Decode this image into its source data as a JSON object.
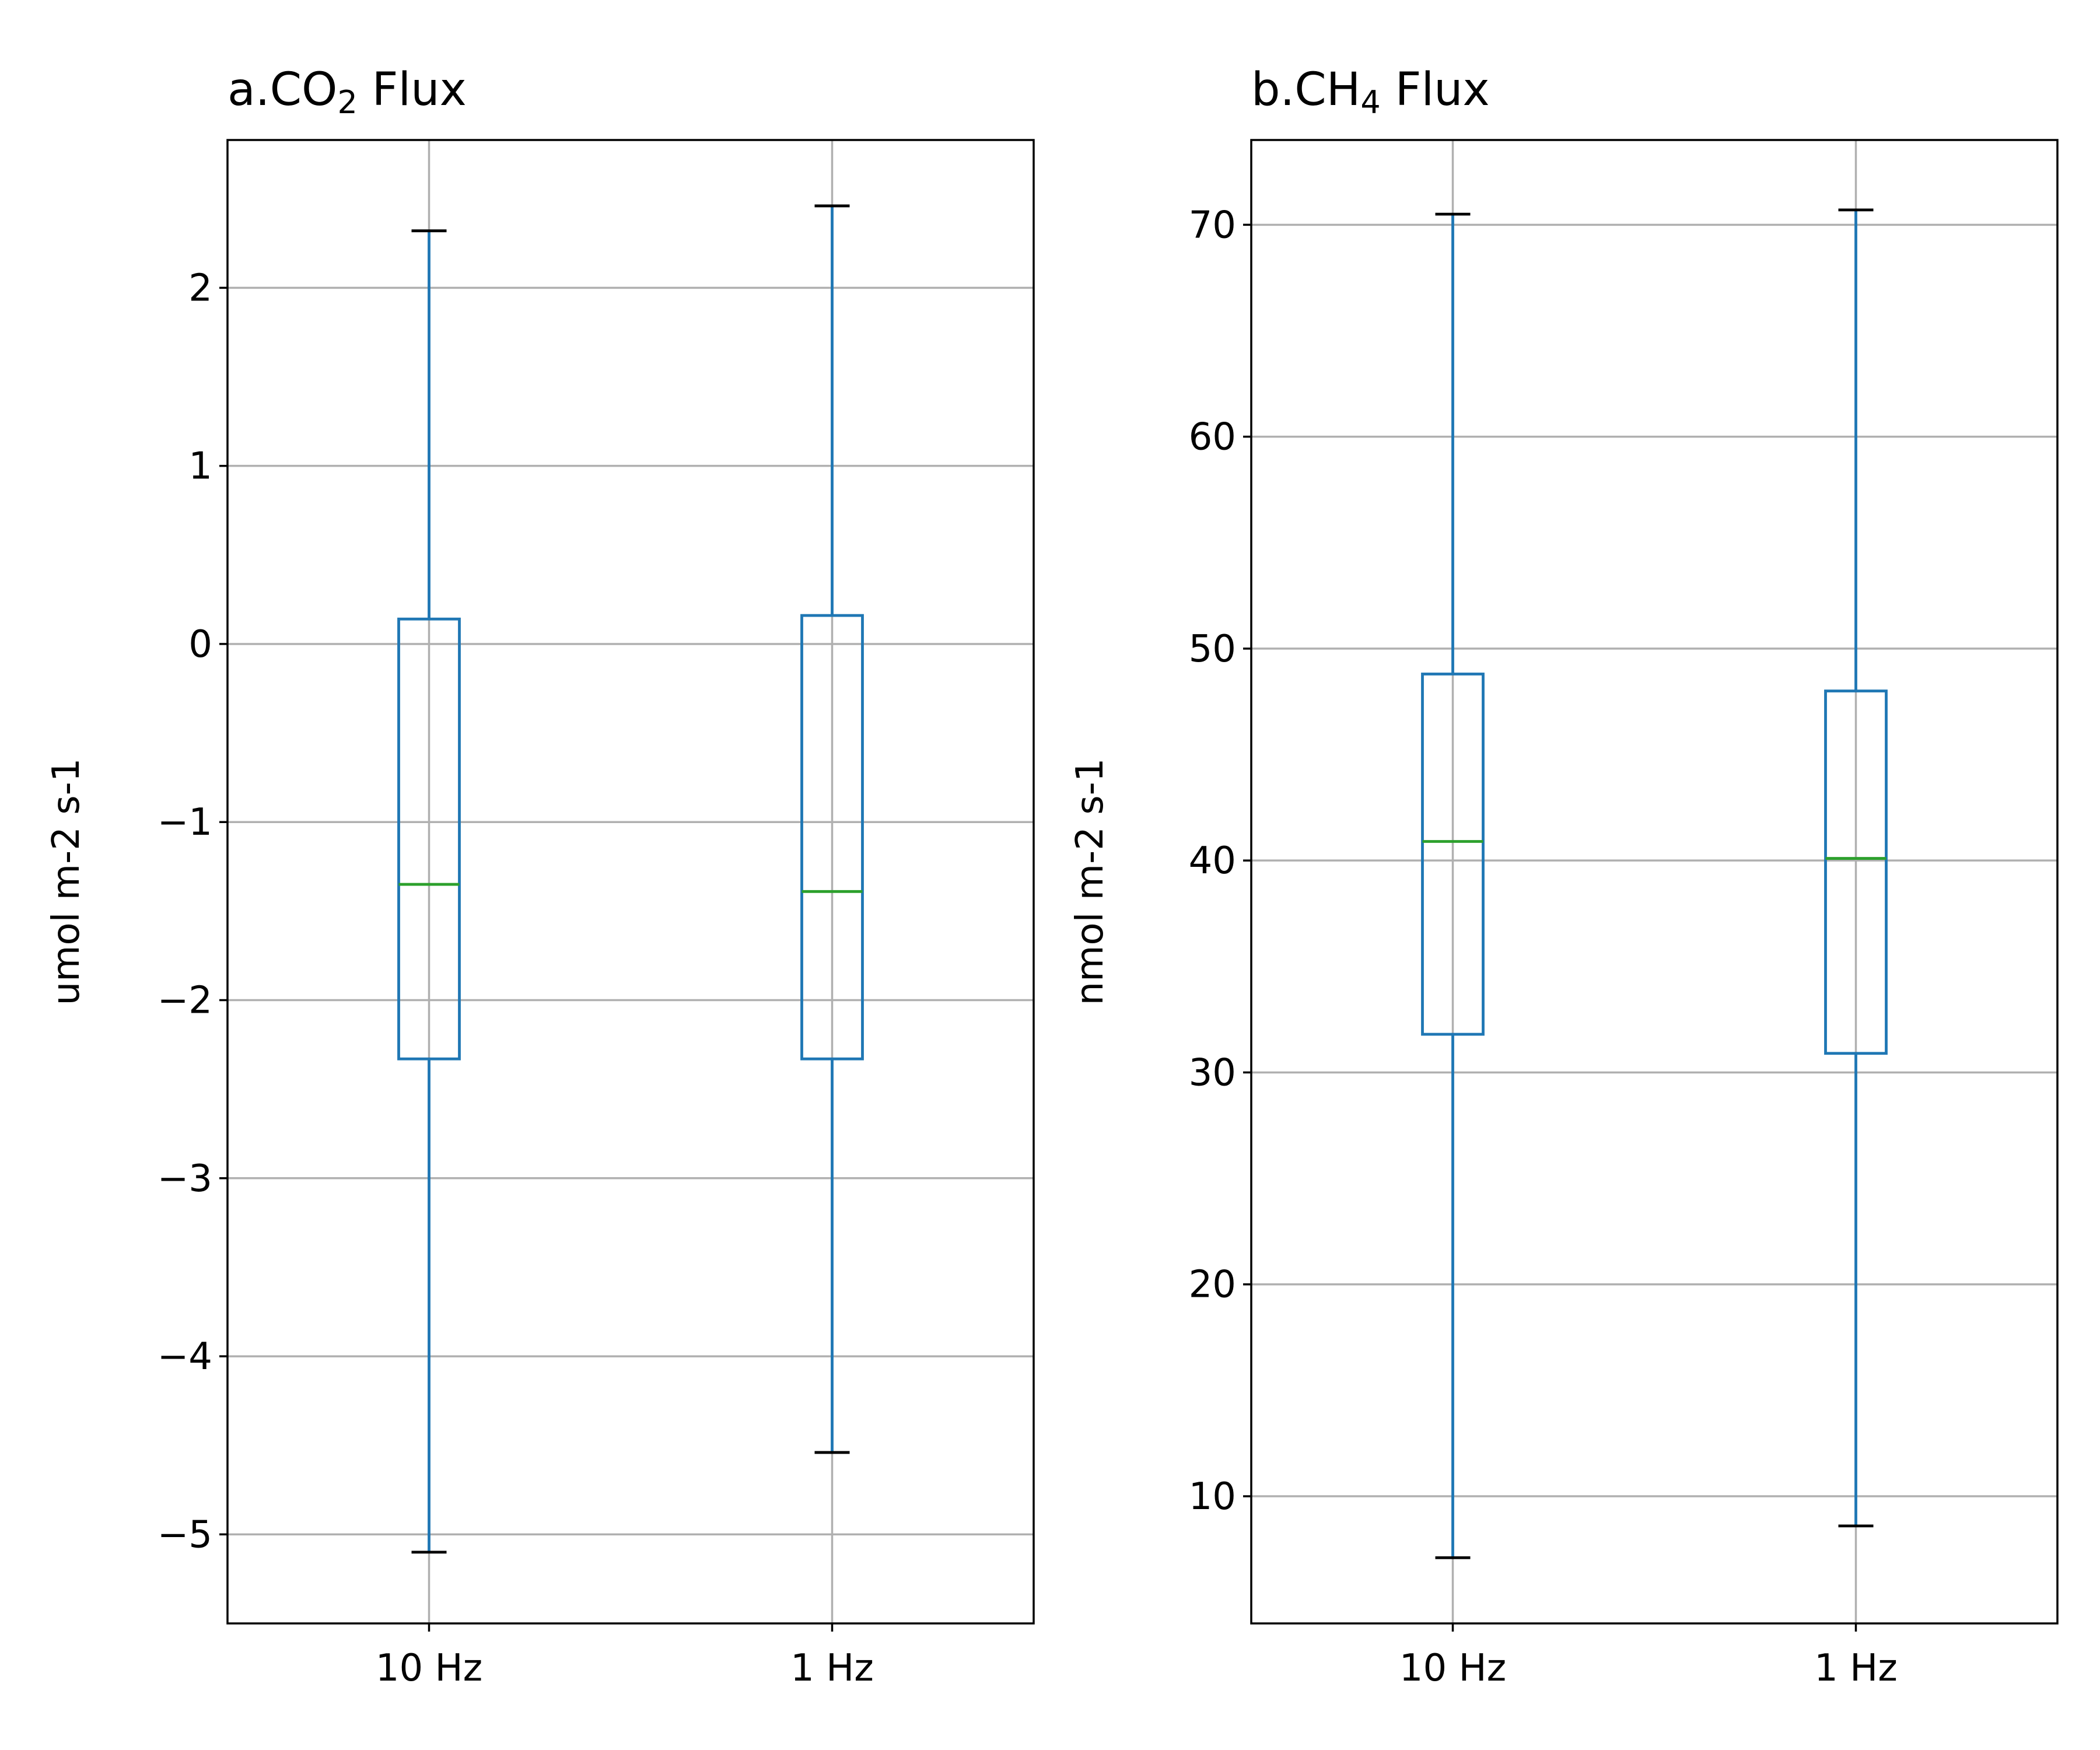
{
  "chart_data": [
    {
      "type": "box",
      "title": {
        "prefix": "a.CO",
        "sub": "2",
        "suffix": " Flux"
      },
      "ylabel": "umol m-2 s-1",
      "ylim": [
        -5.5,
        2.83
      ],
      "yticks": [
        -5,
        -4,
        -3,
        -2,
        -1,
        0,
        1,
        2
      ],
      "ytick_labels": [
        "−5",
        "−4",
        "−3",
        "−2",
        "−1",
        "0",
        "1",
        "2"
      ],
      "categories": [
        "10 Hz",
        "1 Hz"
      ],
      "grid": true,
      "boxes": [
        {
          "whisker_low": -5.1,
          "q1": -2.33,
          "median": -1.35,
          "q3": 0.14,
          "whisker_high": 2.32
        },
        {
          "whisker_low": -4.54,
          "q1": -2.33,
          "median": -1.39,
          "q3": 0.16,
          "whisker_high": 2.46
        }
      ]
    },
    {
      "type": "box",
      "title": {
        "prefix": "b.CH",
        "sub": "4",
        "suffix": " Flux"
      },
      "ylabel": "nmol m-2 s-1",
      "ylim": [
        4.0,
        74.0
      ],
      "yticks": [
        10,
        20,
        30,
        40,
        50,
        60,
        70
      ],
      "ytick_labels": [
        "10",
        "20",
        "30",
        "40",
        "50",
        "60",
        "70"
      ],
      "categories": [
        "10 Hz",
        "1 Hz"
      ],
      "grid": true,
      "boxes": [
        {
          "whisker_low": 7.1,
          "q1": 31.8,
          "median": 40.9,
          "q3": 48.8,
          "whisker_high": 70.5
        },
        {
          "whisker_low": 8.6,
          "q1": 30.9,
          "median": 40.1,
          "q3": 48.0,
          "whisker_high": 70.7
        }
      ]
    }
  ],
  "colors": {
    "box": "#1f77b4",
    "median": "#2ca02c",
    "cap": "#000000",
    "grid": "#b0b0b0"
  }
}
